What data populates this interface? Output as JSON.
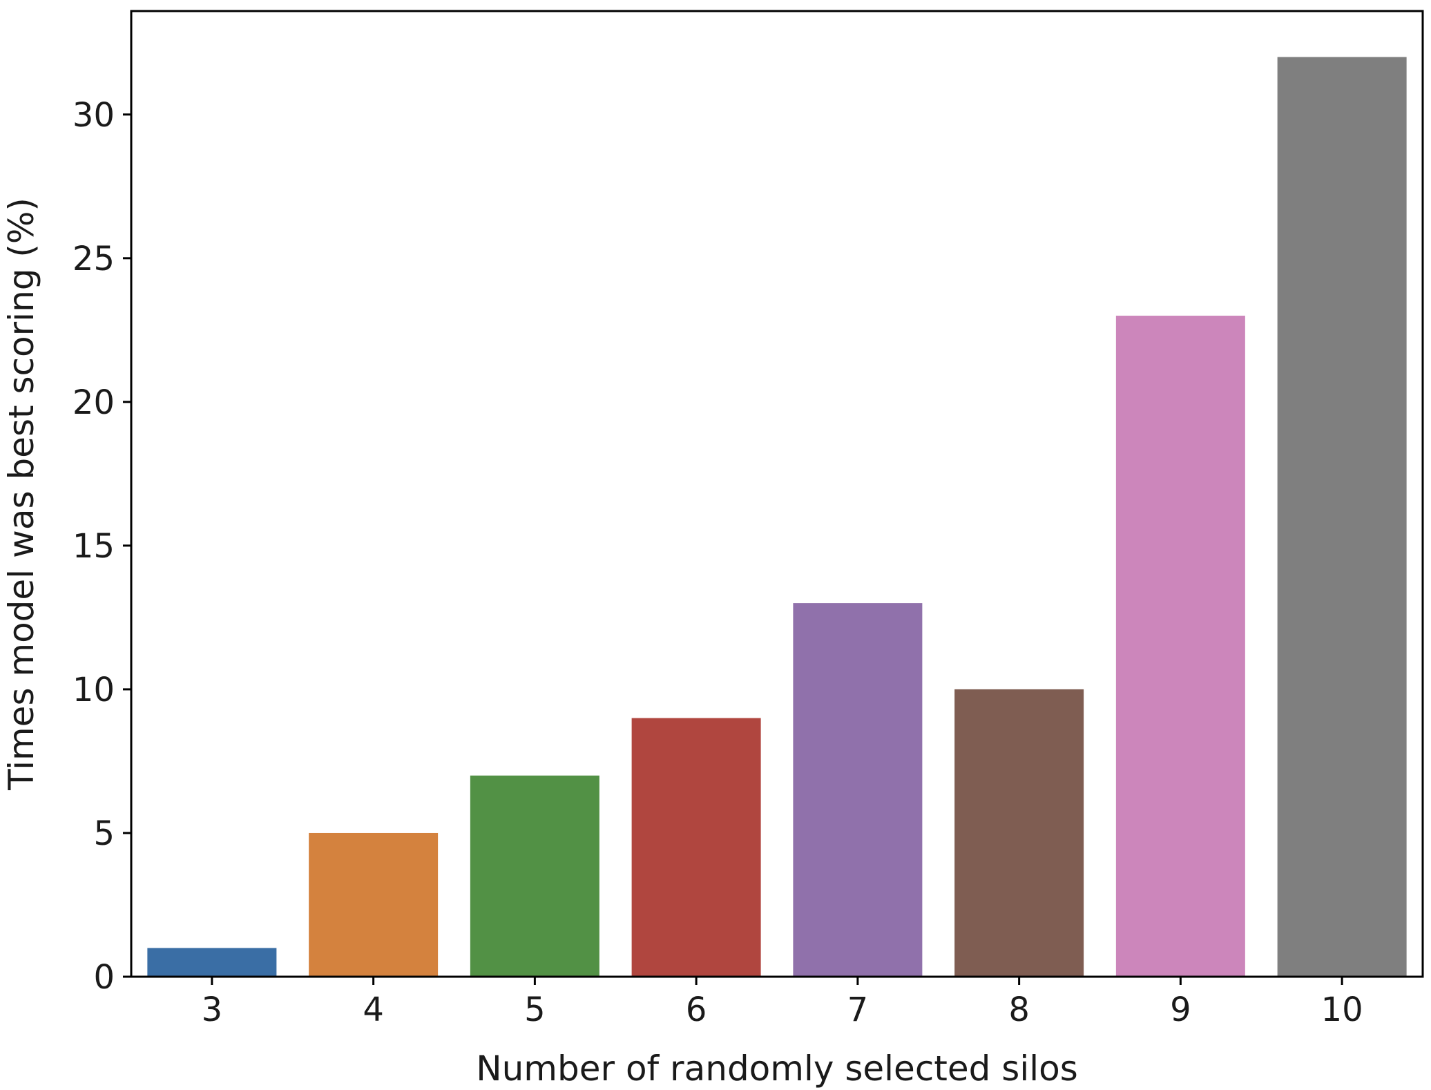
{
  "chart_data": {
    "type": "bar",
    "categories": [
      "3",
      "4",
      "5",
      "6",
      "7",
      "8",
      "9",
      "10"
    ],
    "values": [
      1,
      5,
      7,
      9,
      13,
      10,
      23,
      32
    ],
    "colors": [
      "#3a6ea5",
      "#d4823e",
      "#529145",
      "#b0463f",
      "#9071ab",
      "#7f5d52",
      "#cc86bb",
      "#7f7f7f"
    ],
    "xlabel": "Number of randomly selected silos",
    "ylabel": "Times model was best scoring (%)",
    "yticks": [
      0,
      5,
      10,
      15,
      20,
      25,
      30
    ],
    "ylim": [
      0,
      33.6
    ],
    "grid": false
  }
}
